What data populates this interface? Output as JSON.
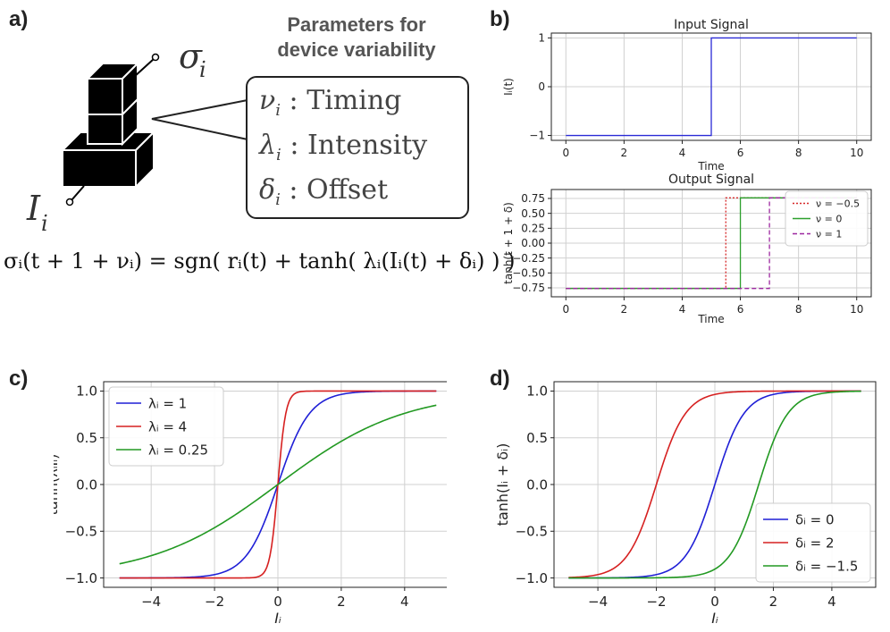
{
  "panel_labels": {
    "a": "a)",
    "b": "b)",
    "c": "c)",
    "d": "d)"
  },
  "panel_a": {
    "sigma_label": "σ",
    "sigma_sub": "i",
    "input_label": "I",
    "input_sub": "i",
    "params_title_line1": "Parameters for",
    "params_title_line2": "device variability",
    "params": [
      {
        "symbol": "ν",
        "sub": "i",
        "text": " : Timing"
      },
      {
        "symbol": "λ",
        "sub": "i",
        "text": " : Intensity"
      },
      {
        "symbol": "δ",
        "sub": "i",
        "text": " : Offset"
      }
    ],
    "equation": "σᵢ(t + 1 + νᵢ) = sgn( rᵢ(t) + tanh( λᵢ(Iᵢ(t) + δᵢ) ) )"
  },
  "chart_data": [
    {
      "id": "input_signal",
      "type": "line",
      "title": "Input Signal",
      "xlabel": "Time",
      "ylabel": "Iᵢ(t)",
      "xlim": [
        -0.5,
        10.5
      ],
      "ylim": [
        -1.1,
        1.1
      ],
      "xticks": [
        0,
        2,
        4,
        6,
        8,
        10
      ],
      "yticks": [
        -1,
        0,
        1
      ],
      "ytick_labels": [
        "−1",
        "0",
        "1"
      ],
      "grid": true,
      "series": [
        {
          "color": "#2a2ad6",
          "dash": "",
          "x": [
            0,
            5,
            5,
            10
          ],
          "y": [
            -1,
            -1,
            1,
            1
          ]
        }
      ]
    },
    {
      "id": "output_signal",
      "type": "line",
      "title": "Output Signal",
      "xlabel": "Time",
      "ylabel": "tanh(t + 1 + δ)",
      "xlim": [
        -0.5,
        10.5
      ],
      "ylim": [
        -0.9,
        0.9
      ],
      "xticks": [
        0,
        2,
        4,
        6,
        8,
        10
      ],
      "yticks": [
        -0.75,
        -0.5,
        -0.25,
        0,
        0.25,
        0.5,
        0.75
      ],
      "ytick_labels": [
        "−0.75",
        "−0.50",
        "−0.25",
        "0.00",
        "0.25",
        "0.50",
        "0.75"
      ],
      "grid": true,
      "legend_position": "top-right",
      "series": [
        {
          "name": "ν = −0.5",
          "color": "#d62728",
          "dash": "2,2",
          "x": [
            0,
            5.5,
            5.5,
            10
          ],
          "y": [
            -0.76,
            -0.76,
            0.76,
            0.76
          ]
        },
        {
          "name": "ν = 0",
          "color": "#2ca02c",
          "dash": "",
          "x": [
            0,
            6,
            6,
            10
          ],
          "y": [
            -0.76,
            -0.76,
            0.76,
            0.76
          ]
        },
        {
          "name": "ν = 1",
          "color": "#9c27a0",
          "dash": "5,3",
          "x": [
            0,
            7,
            7,
            10
          ],
          "y": [
            -0.76,
            -0.76,
            0.76,
            0.76
          ]
        }
      ]
    },
    {
      "id": "lambda_plot",
      "type": "line",
      "title": "",
      "xlabel": "Iᵢ",
      "ylabel": "tanh(λᵢIᵢ)",
      "xlim": [
        -5.5,
        5.5
      ],
      "ylim": [
        -1.1,
        1.1
      ],
      "xticks": [
        -4,
        -2,
        0,
        2,
        4
      ],
      "xtick_labels": [
        "−4",
        "−2",
        "0",
        "2",
        "4"
      ],
      "yticks": [
        -1,
        -0.5,
        0,
        0.5,
        1
      ],
      "ytick_labels": [
        "−1.0",
        "−0.5",
        "0.0",
        "0.5",
        "1.0"
      ],
      "grid": true,
      "legend_position": "top-left",
      "function": "tanh_scale",
      "x_range": [
        -5,
        5
      ],
      "series": [
        {
          "name": "λᵢ = 1",
          "param": 1,
          "color": "#1f1fd6"
        },
        {
          "name": "λᵢ = 4",
          "param": 4,
          "color": "#d62020"
        },
        {
          "name": "λᵢ = 0.25",
          "param": 0.25,
          "color": "#229922"
        }
      ]
    },
    {
      "id": "delta_plot",
      "type": "line",
      "title": "",
      "xlabel": "Iᵢ",
      "ylabel": "tanh(Iᵢ + δᵢ)",
      "xlim": [
        -5.5,
        5.5
      ],
      "ylim": [
        -1.1,
        1.1
      ],
      "xticks": [
        -4,
        -2,
        0,
        2,
        4
      ],
      "xtick_labels": [
        "−4",
        "−2",
        "0",
        "2",
        "4"
      ],
      "yticks": [
        -1,
        -0.5,
        0,
        0.5,
        1
      ],
      "ytick_labels": [
        "−1.0",
        "−0.5",
        "0.0",
        "0.5",
        "1.0"
      ],
      "grid": true,
      "legend_position": "bottom-right",
      "function": "tanh_offset",
      "x_range": [
        -5,
        5
      ],
      "series": [
        {
          "name": "δᵢ = 0",
          "param": 0,
          "color": "#1f1fd6"
        },
        {
          "name": "δᵢ = 2",
          "param": 2,
          "color": "#d62020"
        },
        {
          "name": "δᵢ = −1.5",
          "param": -1.5,
          "color": "#229922"
        }
      ]
    }
  ]
}
